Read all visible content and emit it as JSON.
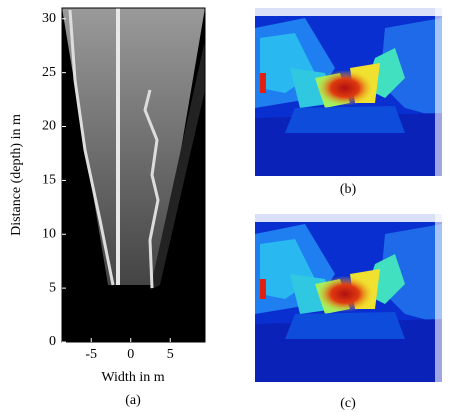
{
  "figure_a": {
    "ylabel": "Distance (depth) in m",
    "xlabel": "Width in m",
    "caption": "(a)",
    "xlim": [
      -8.7,
      9.4
    ],
    "ylim": [
      0,
      31
    ],
    "xticks": [
      -5,
      0,
      5
    ],
    "yticks": [
      0,
      5,
      10,
      15,
      20,
      25,
      30
    ]
  },
  "figure_b": {
    "caption": "(b)"
  },
  "figure_c": {
    "caption": "(c)"
  }
}
